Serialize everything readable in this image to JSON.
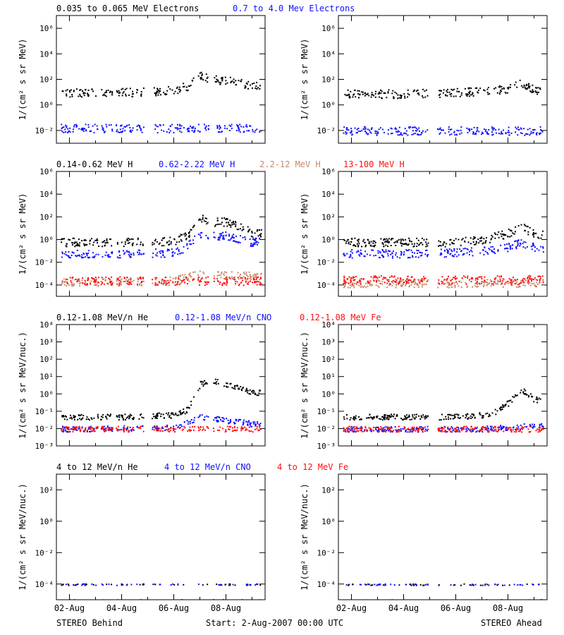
{
  "colors": {
    "black": "#000000",
    "blue": "#1010ff",
    "tan": "#c88a6a",
    "red": "#ff1010",
    "frame": "#000000"
  },
  "x_ticks": [
    "02-Aug",
    "04-Aug",
    "06-Aug",
    "08-Aug"
  ],
  "footer": {
    "left": "STEREO Behind",
    "center": "Start:  2-Aug-2007 00:00 UTC",
    "right": "STEREO Ahead"
  },
  "rows": [
    {
      "id": "electrons",
      "ylabel": "1/(cm² s sr MeV)",
      "ticks": [
        {
          "exp": 6,
          "label": "10⁶"
        },
        {
          "exp": 4,
          "label": "10⁴"
        },
        {
          "exp": 2,
          "label": "10²"
        },
        {
          "exp": 0,
          "label": "10⁰"
        },
        {
          "exp": -2,
          "label": "10⁻²"
        }
      ],
      "ylim": [
        -3,
        7
      ],
      "legend": [
        {
          "text": "0.035 to 0.065 MeV Electrons",
          "color": "black"
        },
        {
          "text": "0.7 to 4.0 Mev Electrons",
          "color": "blue"
        }
      ]
    },
    {
      "id": "protons",
      "ylabel": "1/(cm² s sr MeV)",
      "ticks": [
        {
          "exp": 6,
          "label": "10⁶"
        },
        {
          "exp": 4,
          "label": "10⁴"
        },
        {
          "exp": 2,
          "label": "10²"
        },
        {
          "exp": 0,
          "label": "10⁰"
        },
        {
          "exp": -2,
          "label": "10⁻²"
        },
        {
          "exp": -4,
          "label": "10⁻⁴"
        }
      ],
      "ylim": [
        -5,
        6
      ],
      "legend": [
        {
          "text": "0.14-0.62 MeV H",
          "color": "black"
        },
        {
          "text": "0.62-2.22 MeV H",
          "color": "blue"
        },
        {
          "text": "2.2-12 MeV H",
          "color": "tan"
        },
        {
          "text": "13-100 MeV H",
          "color": "red"
        }
      ]
    },
    {
      "id": "heavy_low",
      "ylabel": "1/(cm² s sr MeV/nuc.)",
      "ticks": [
        {
          "exp": 4,
          "label": "10⁴"
        },
        {
          "exp": 3,
          "label": "10³"
        },
        {
          "exp": 2,
          "label": "10²"
        },
        {
          "exp": 1,
          "label": "10¹"
        },
        {
          "exp": 0,
          "label": "10⁰"
        },
        {
          "exp": -1,
          "label": "10⁻¹"
        },
        {
          "exp": -2,
          "label": "10⁻²"
        },
        {
          "exp": -3,
          "label": "10⁻³"
        }
      ],
      "ylim": [
        -3,
        4
      ],
      "legend": [
        {
          "text": "0.12-1.08 MeV/n He",
          "color": "black"
        },
        {
          "text": "0.12-1.08 MeV/n CNO",
          "color": "blue"
        },
        {
          "text": "0.12-1.08 MeV Fe",
          "color": "red"
        }
      ]
    },
    {
      "id": "heavy_high",
      "ylabel": "1/(cm² s sr MeV/nuc.)",
      "ticks": [
        {
          "exp": 2,
          "label": "10²"
        },
        {
          "exp": 0,
          "label": "10⁰"
        },
        {
          "exp": -2,
          "label": "10⁻²"
        },
        {
          "exp": -4,
          "label": "10⁻⁴"
        }
      ],
      "ylim": [
        -5,
        3
      ],
      "legend": [
        {
          "text": "4 to 12 MeV/n He",
          "color": "black"
        },
        {
          "text": "4 to 12 MeV/n CNO",
          "color": "blue"
        },
        {
          "text": "4 to 12 MeV Fe",
          "color": "red"
        }
      ]
    }
  ],
  "chart_data": [
    {
      "type": "scatter",
      "panel": "behind-electrons",
      "xlim": [
        "2007-08-01T12:00",
        "2007-08-09T12:00"
      ],
      "y_log10_range": [
        -3,
        7
      ],
      "series": [
        {
          "name": "0.035 to 0.065 MeV Electrons",
          "color": "black",
          "x": [
            "2007-08-02",
            "2007-08-03",
            "2007-08-04",
            "2007-08-05",
            "2007-08-06",
            "2007-08-06T12:00",
            "2007-08-07",
            "2007-08-07T12:00",
            "2007-08-08",
            "2007-08-08T12:00",
            "2007-08-09"
          ],
          "log10_y": [
            1.0,
            1.0,
            1.0,
            1.05,
            1.2,
            1.5,
            2.3,
            2.0,
            2.0,
            1.8,
            1.5
          ]
        },
        {
          "name": "0.7 to 4.0 Mev Electrons",
          "color": "blue",
          "x": [
            "2007-08-02",
            "2007-08-05",
            "2007-08-09"
          ],
          "log10_y": [
            -1.8,
            -1.8,
            -1.8
          ]
        }
      ]
    },
    {
      "type": "scatter",
      "panel": "ahead-electrons",
      "xlim": [
        "2007-08-01T12:00",
        "2007-08-09T12:00"
      ],
      "y_log10_range": [
        -3,
        7
      ],
      "series": [
        {
          "name": "0.035 to 0.065 MeV Electrons",
          "color": "black",
          "x": [
            "2007-08-02",
            "2007-08-04",
            "2007-08-06",
            "2007-08-07",
            "2007-08-08",
            "2007-08-08T12:00",
            "2007-08-09"
          ],
          "log10_y": [
            0.9,
            0.9,
            1.0,
            1.1,
            1.3,
            1.7,
            1.2
          ]
        },
        {
          "name": "0.7 to 4.0 Mev Electrons",
          "color": "blue",
          "x": [
            "2007-08-02",
            "2007-08-05",
            "2007-08-09"
          ],
          "log10_y": [
            -2.0,
            -2.0,
            -2.0
          ]
        }
      ]
    },
    {
      "type": "scatter",
      "panel": "behind-protons",
      "xlim": [
        "2007-08-01T12:00",
        "2007-08-09T12:00"
      ],
      "y_log10_range": [
        -5,
        6
      ],
      "series": [
        {
          "name": "0.14-0.62 MeV H",
          "color": "black",
          "x": [
            "2007-08-02",
            "2007-08-04",
            "2007-08-06",
            "2007-08-06T12:00",
            "2007-08-07",
            "2007-08-07T12:00",
            "2007-08-08",
            "2007-08-08T12:00",
            "2007-08-09"
          ],
          "log10_y": [
            -0.2,
            -0.2,
            -0.1,
            0.4,
            2.0,
            1.6,
            1.6,
            1.2,
            0.6
          ]
        },
        {
          "name": "0.62-2.22 MeV H",
          "color": "blue",
          "x": [
            "2007-08-02",
            "2007-08-04",
            "2007-08-06",
            "2007-08-06T12:00",
            "2007-08-07",
            "2007-08-07T12:00",
            "2007-08-08",
            "2007-08-08T12:00",
            "2007-08-09"
          ],
          "log10_y": [
            -1.2,
            -1.2,
            -1.1,
            -0.6,
            0.6,
            0.4,
            0.4,
            0.1,
            -0.2
          ]
        },
        {
          "name": "2.2-12 MeV H",
          "color": "tan",
          "x": [
            "2007-08-02",
            "2007-08-06",
            "2007-08-07",
            "2007-08-09"
          ],
          "log10_y": [
            -3.7,
            -3.6,
            -3.0,
            -3.2
          ]
        },
        {
          "name": "13-100 MeV H",
          "color": "red",
          "x": [
            "2007-08-02",
            "2007-08-05",
            "2007-08-09"
          ],
          "log10_y": [
            -3.6,
            -3.6,
            -3.6
          ]
        }
      ]
    },
    {
      "type": "scatter",
      "panel": "ahead-protons",
      "xlim": [
        "2007-08-01T12:00",
        "2007-08-09T12:00"
      ],
      "y_log10_range": [
        -5,
        6
      ],
      "series": [
        {
          "name": "0.14-0.62 MeV H",
          "color": "black",
          "x": [
            "2007-08-02",
            "2007-08-04",
            "2007-08-06",
            "2007-08-07",
            "2007-08-08",
            "2007-08-08T12:00",
            "2007-08-09"
          ],
          "log10_y": [
            -0.2,
            -0.2,
            -0.2,
            0.0,
            0.6,
            1.2,
            0.5
          ]
        },
        {
          "name": "0.62-2.22 MeV H",
          "color": "blue",
          "x": [
            "2007-08-02",
            "2007-08-04",
            "2007-08-06",
            "2007-08-07",
            "2007-08-08",
            "2007-08-08T12:00",
            "2007-08-09"
          ],
          "log10_y": [
            -1.2,
            -1.2,
            -1.1,
            -1.0,
            -0.6,
            -0.2,
            -0.7
          ]
        },
        {
          "name": "2.2-12 MeV H",
          "color": "tan",
          "x": [
            "2007-08-02",
            "2007-08-09"
          ],
          "log10_y": [
            -3.8,
            -3.8
          ]
        },
        {
          "name": "13-100 MeV H",
          "color": "red",
          "x": [
            "2007-08-02",
            "2007-08-05",
            "2007-08-09"
          ],
          "log10_y": [
            -3.5,
            -3.5,
            -3.5
          ]
        }
      ]
    },
    {
      "type": "scatter",
      "panel": "behind-heavy-low",
      "xlim": [
        "2007-08-01T12:00",
        "2007-08-09T12:00"
      ],
      "y_log10_range": [
        -3,
        4
      ],
      "series": [
        {
          "name": "0.12-1.08 MeV/n He",
          "color": "black",
          "x": [
            "2007-08-02",
            "2007-08-04",
            "2007-08-06",
            "2007-08-06T12:00",
            "2007-08-07",
            "2007-08-07T12:00",
            "2007-08-08",
            "2007-08-08T12:00",
            "2007-08-09"
          ],
          "log10_y": [
            -1.3,
            -1.3,
            -1.2,
            -0.9,
            0.6,
            0.8,
            0.6,
            0.4,
            0.1
          ]
        },
        {
          "name": "0.12-1.08 MeV/n CNO",
          "color": "blue",
          "x": [
            "2007-08-02",
            "2007-08-06",
            "2007-08-07",
            "2007-08-09"
          ],
          "log10_y": [
            -2.0,
            -1.9,
            -1.3,
            -1.7
          ]
        },
        {
          "name": "0.12-1.08 MeV Fe",
          "color": "red",
          "x": [
            "2007-08-02",
            "2007-08-05",
            "2007-08-09"
          ],
          "log10_y": [
            -2.0,
            -2.0,
            -2.0
          ]
        }
      ]
    },
    {
      "type": "scatter",
      "panel": "ahead-heavy-low",
      "xlim": [
        "2007-08-01T12:00",
        "2007-08-09T12:00"
      ],
      "y_log10_range": [
        -3,
        4
      ],
      "series": [
        {
          "name": "0.12-1.08 MeV/n He",
          "color": "black",
          "x": [
            "2007-08-02",
            "2007-08-04",
            "2007-08-06",
            "2007-08-07",
            "2007-08-07T12:00",
            "2007-08-08",
            "2007-08-08T12:00",
            "2007-08-09"
          ],
          "log10_y": [
            -1.3,
            -1.3,
            -1.3,
            -1.2,
            -1.0,
            -0.5,
            0.3,
            -0.3
          ]
        },
        {
          "name": "0.12-1.08 MeV/n CNO",
          "color": "blue",
          "x": [
            "2007-08-02",
            "2007-08-07",
            "2007-08-09"
          ],
          "log10_y": [
            -2.0,
            -2.0,
            -1.8
          ]
        },
        {
          "name": "0.12-1.08 MeV Fe",
          "color": "red",
          "x": [
            "2007-08-02",
            "2007-08-05",
            "2007-08-09"
          ],
          "log10_y": [
            -2.0,
            -2.0,
            -2.0
          ]
        }
      ]
    },
    {
      "type": "scatter",
      "panel": "behind-heavy-high",
      "xlim": [
        "2007-08-01T12:00",
        "2007-08-09T12:00"
      ],
      "y_log10_range": [
        -5,
        3
      ],
      "series": [
        {
          "name": "4 to 12 MeV/n He",
          "color": "black",
          "x": [
            "2007-08-02",
            "2007-08-05",
            "2007-08-09"
          ],
          "log10_y": [
            -4.0,
            -4.0,
            -4.0
          ]
        },
        {
          "name": "4 to 12 MeV/n CNO",
          "color": "blue",
          "x": [
            "2007-08-02",
            "2007-08-05",
            "2007-08-09"
          ],
          "log10_y": [
            -4.0,
            -4.0,
            -4.0
          ]
        },
        {
          "name": "4 to 12 MeV Fe",
          "color": "red",
          "x": [
            "2007-08-02",
            "2007-08-05",
            "2007-08-09"
          ],
          "log10_y": [
            -5.0,
            -5.0,
            -5.0
          ]
        }
      ]
    },
    {
      "type": "scatter",
      "panel": "ahead-heavy-high",
      "xlim": [
        "2007-08-01T12:00",
        "2007-08-09T12:00"
      ],
      "y_log10_range": [
        -5,
        3
      ],
      "series": [
        {
          "name": "4 to 12 MeV/n He",
          "color": "black",
          "x": [
            "2007-08-02",
            "2007-08-05",
            "2007-08-09"
          ],
          "log10_y": [
            -4.0,
            -4.0,
            -4.0
          ]
        },
        {
          "name": "4 to 12 MeV/n CNO",
          "color": "blue",
          "x": [
            "2007-08-02",
            "2007-08-05",
            "2007-08-09"
          ],
          "log10_y": [
            -4.0,
            -4.0,
            -4.0
          ]
        },
        {
          "name": "4 to 12 MeV Fe",
          "color": "red",
          "x": [
            "2007-08-02",
            "2007-08-05",
            "2007-08-09"
          ],
          "log10_y": [
            -5.0,
            -5.0,
            -5.0
          ]
        }
      ]
    }
  ]
}
